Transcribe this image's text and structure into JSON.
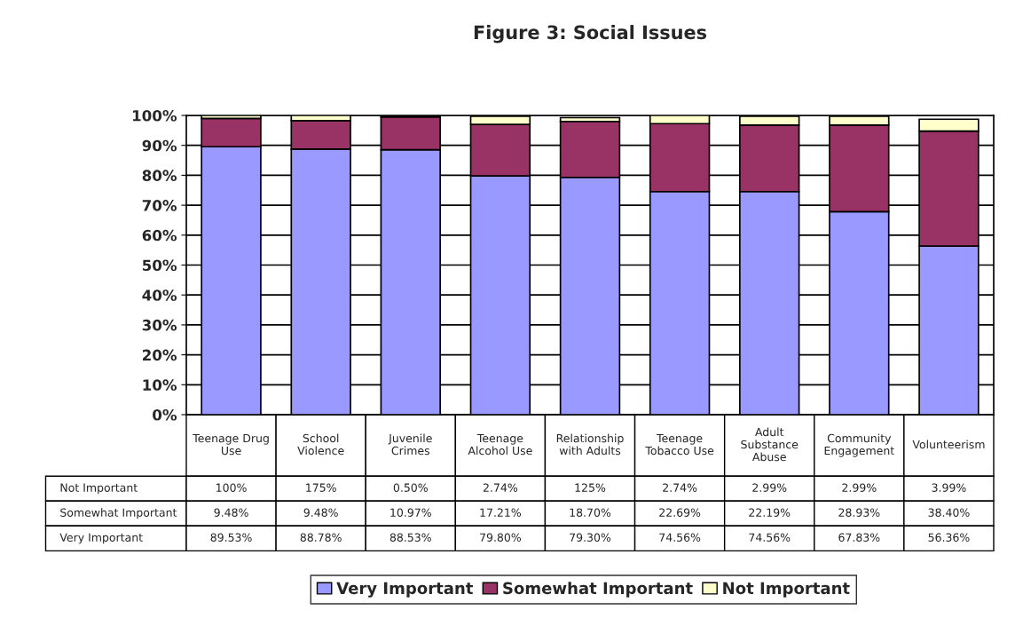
{
  "chart_data": {
    "type": "bar",
    "title": "Figure 3: Social Issues",
    "categories": [
      "Teenage Drug Use",
      "School Violence",
      "Juvenile Crimes",
      "Teenage Alcohol Use",
      "Relationship with Adults",
      "Teenage Tobacco Use",
      "Adult Substance Abuse",
      "Community Engagement",
      "Volunteerism"
    ],
    "stacked": true,
    "series": [
      {
        "name": "Very Important",
        "color": "#9999ff",
        "values": [
          89.53,
          88.78,
          88.53,
          79.8,
          79.3,
          74.56,
          74.56,
          67.83,
          56.36
        ],
        "value_labels": [
          "89.53%",
          "88.78%",
          "88.53%",
          "79.80%",
          "79.30%",
          "74.56%",
          "74.56%",
          "67.83%",
          "56.36%"
        ]
      },
      {
        "name": "Somewhat Important",
        "color": "#993366",
        "values": [
          9.48,
          9.48,
          10.97,
          17.21,
          18.7,
          22.69,
          22.19,
          28.93,
          38.4
        ],
        "value_labels": [
          "9.48%",
          "9.48%",
          "10.97%",
          "17.21%",
          "18.70%",
          "22.69%",
          "22.19%",
          "28.93%",
          "38.40%"
        ]
      },
      {
        "name": "Not Important",
        "color": "#ffffcc",
        "values": [
          1.0,
          1.75,
          0.5,
          2.74,
          1.25,
          2.74,
          2.99,
          2.99,
          3.99
        ],
        "value_labels": [
          "100%",
          "175%",
          "0.50%",
          "2.74%",
          "125%",
          "2.74%",
          "2.99%",
          "2.99%",
          "3.99%"
        ]
      }
    ],
    "ylim": [
      0,
      100
    ],
    "yticks": [
      {
        "value": 0,
        "label": "0%"
      },
      {
        "value": 10,
        "label": "10%"
      },
      {
        "value": 20,
        "label": "20%"
      },
      {
        "value": 30,
        "label": "30%"
      },
      {
        "value": 40,
        "label": "40%"
      },
      {
        "value": 50,
        "label": "50%"
      },
      {
        "value": 60,
        "label": "60%"
      },
      {
        "value": 70,
        "label": "70%"
      },
      {
        "value": 80,
        "label": "80%"
      },
      {
        "value": 90,
        "label": "90%"
      },
      {
        "value": 100,
        "label": "100%"
      }
    ],
    "grid": "y",
    "legend": "bottom"
  }
}
